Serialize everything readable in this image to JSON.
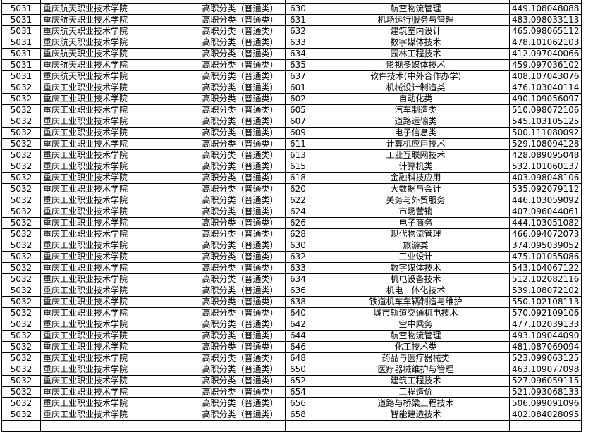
{
  "rows": [
    [
      "5031",
      "重庆航天职业技术学院",
      "高职分类（普通类）",
      "630",
      "航空物流管理",
      "449.108048088"
    ],
    [
      "5031",
      "重庆航天职业技术学院",
      "高职分类（普通类）",
      "631",
      "机场运行服务与管理",
      "483.098033113"
    ],
    [
      "5031",
      "重庆航天职业技术学院",
      "高职分类（普通类）",
      "632",
      "建筑室内设计",
      "465.098065112"
    ],
    [
      "5031",
      "重庆航天职业技术学院",
      "高职分类（普通类）",
      "633",
      "数字媒体技术",
      "478.101062103"
    ],
    [
      "5031",
      "重庆航天职业技术学院",
      "高职分类（普通类）",
      "634",
      "园林工程技术",
      "412.097040066"
    ],
    [
      "5031",
      "重庆航天职业技术学院",
      "高职分类（普通类）",
      "635",
      "影视多媒体技术",
      "459.097036102"
    ],
    [
      "5031",
      "重庆航天职业技术学院",
      "高职分类（普通类）",
      "637",
      "软件技术(中外合作办学)",
      "408.107043076"
    ],
    [
      "5032",
      "重庆工业职业技术学院",
      "高职分类（普通类）",
      "601",
      "机械设计制造类",
      "476.103040114"
    ],
    [
      "5032",
      "重庆工业职业技术学院",
      "高职分类（普通类）",
      "602",
      "自动化类",
      "490.109056097"
    ],
    [
      "5032",
      "重庆工业职业技术学院",
      "高职分类（普通类）",
      "605",
      "汽车制造类",
      "510.098072106"
    ],
    [
      "5032",
      "重庆工业职业技术学院",
      "高职分类（普通类）",
      "607",
      "道路运输类",
      "545.103105125"
    ],
    [
      "5032",
      "重庆工业职业技术学院",
      "高职分类（普通类）",
      "609",
      "电子信息类",
      "500.111080092"
    ],
    [
      "5032",
      "重庆工业职业技术学院",
      "高职分类（普通类）",
      "611",
      "计算机应用技术",
      "529.108094128"
    ],
    [
      "5032",
      "重庆工业职业技术学院",
      "高职分类（普通类）",
      "613",
      "工业互联网技术",
      "428.089095048"
    ],
    [
      "5032",
      "重庆工业职业技术学院",
      "高职分类（普通类）",
      "615",
      "计算机类",
      "532.101060137"
    ],
    [
      "5032",
      "重庆工业职业技术学院",
      "高职分类（普通类）",
      "618",
      "金融科技应用",
      "403.098048106"
    ],
    [
      "5032",
      "重庆工业职业技术学院",
      "高职分类（普通类）",
      "620",
      "大数据与会计",
      "535.092079112"
    ],
    [
      "5032",
      "重庆工业职业技术学院",
      "高职分类（普通类）",
      "622",
      "关务与外贸服务",
      "446.103059092"
    ],
    [
      "5032",
      "重庆工业职业技术学院",
      "高职分类（普通类）",
      "624",
      "市场营销",
      "407.096044061"
    ],
    [
      "5032",
      "重庆工业职业技术学院",
      "高职分类（普通类）",
      "626",
      "电子商务",
      "444.103051082"
    ],
    [
      "5032",
      "重庆工业职业技术学院",
      "高职分类（普通类）",
      "628",
      "现代物流管理",
      "466.094072073"
    ],
    [
      "5032",
      "重庆工业职业技术学院",
      "高职分类（普通类）",
      "630",
      "旅游类",
      "374.095039052"
    ],
    [
      "5032",
      "重庆工业职业技术学院",
      "高职分类（普通类）",
      "632",
      "工业设计",
      "475.101055086"
    ],
    [
      "5032",
      "重庆工业职业技术学院",
      "高职分类（普通类）",
      "633",
      "数字媒体技术",
      "543.104067122"
    ],
    [
      "5032",
      "重庆工业职业技术学院",
      "高职分类（普通类）",
      "634",
      "机电设备技术",
      "512.102082116"
    ],
    [
      "5032",
      "重庆工业职业技术学院",
      "高职分类（普通类）",
      "636",
      "机电一体化技术",
      "539.108072102"
    ],
    [
      "5032",
      "重庆工业职业技术学院",
      "高职分类（普通类）",
      "638",
      "铁道机车车辆制造与维护",
      "550.102108113"
    ],
    [
      "5032",
      "重庆工业职业技术学院",
      "高职分类（普通类）",
      "640",
      "城市轨道交通机电技术",
      "570.092109106"
    ],
    [
      "5032",
      "重庆工业职业技术学院",
      "高职分类（普通类）",
      "642",
      "空中乘务",
      "477.102039133"
    ],
    [
      "5032",
      "重庆工业职业技术学院",
      "高职分类（普通类）",
      "644",
      "航空物流管理",
      "493.109044090"
    ],
    [
      "5032",
      "重庆工业职业技术学院",
      "高职分类（普通类）",
      "646",
      "化工技术类",
      "481.087069094"
    ],
    [
      "5032",
      "重庆工业职业技术学院",
      "高职分类（普通类）",
      "648",
      "药品与医疗器械类",
      "523.099063125"
    ],
    [
      "5032",
      "重庆工业职业技术学院",
      "高职分类（普通类）",
      "650",
      "医疗器械维护与管理",
      "463.109077098"
    ],
    [
      "5032",
      "重庆工业职业技术学院",
      "高职分类（普通类）",
      "652",
      "建筑工程技术",
      "527.096059115"
    ],
    [
      "5032",
      "重庆工业职业技术学院",
      "高职分类（普通类）",
      "654",
      "工程造价",
      "521.093068133"
    ],
    [
      "5032",
      "重庆工业职业技术学院",
      "高职分类（普通类）",
      "656",
      "道路与桥梁工程技术",
      "506.099091096"
    ],
    [
      "5032",
      "重庆工业职业技术学院",
      "高职分类（普通类）",
      "658",
      "智能建造技术",
      "402.084028095"
    ]
  ]
}
